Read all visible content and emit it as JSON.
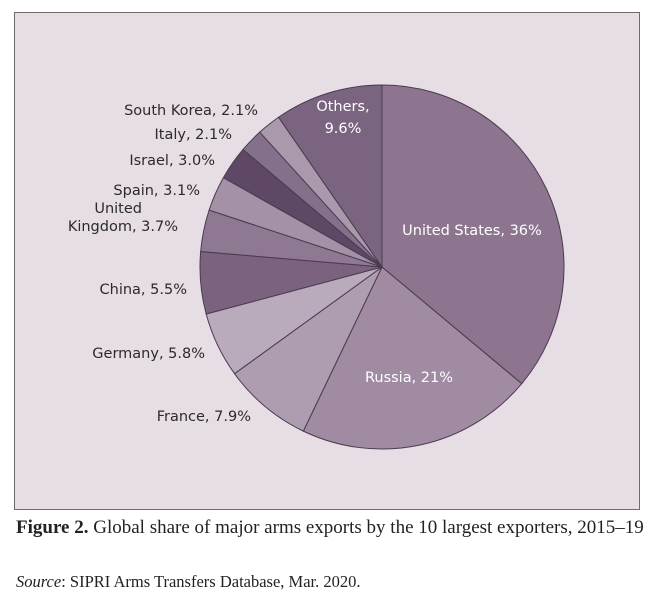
{
  "figure": {
    "number": "Figure 2.",
    "caption": "Global share of major arms exports by the 10 largest exporters, 2015–19",
    "source_label": "Source",
    "source_text": ": SIPRI Arms Transfers Database, Mar. 2020."
  },
  "chart_data": {
    "type": "pie",
    "title": "",
    "unit": "%",
    "slices": [
      {
        "label": "United States, 36%",
        "value": 36,
        "color": "#8d7590"
      },
      {
        "label": "Russia, 21%",
        "value": 21,
        "color": "#a08ba3"
      },
      {
        "label": "France, 7.9%",
        "value": 7.9,
        "color": "#ae9db1"
      },
      {
        "label": "Germany, 5.8%",
        "value": 5.8,
        "color": "#b9aabc"
      },
      {
        "label": "China, 5.5%",
        "value": 5.5,
        "color": "#7b6380"
      },
      {
        "label": "United Kingdom, 3.7%",
        "value": 3.7,
        "color": "#8e7892"
      },
      {
        "label": "Spain, 3.1%",
        "value": 3.1,
        "color": "#a490a7"
      },
      {
        "label": "Israel, 3.0%",
        "value": 3.0,
        "color": "#5f4766"
      },
      {
        "label": "Italy, 2.1%",
        "value": 2.1,
        "color": "#85708b"
      },
      {
        "label": "South Korea, 2.1%",
        "value": 2.1,
        "color": "#aa99ad"
      },
      {
        "label": "Others, 9.6%",
        "value": 9.6,
        "color": "#7a6480"
      }
    ],
    "start_angle_deg": 0,
    "direction": "clockwise",
    "edge_color": "#4a3b4e"
  }
}
